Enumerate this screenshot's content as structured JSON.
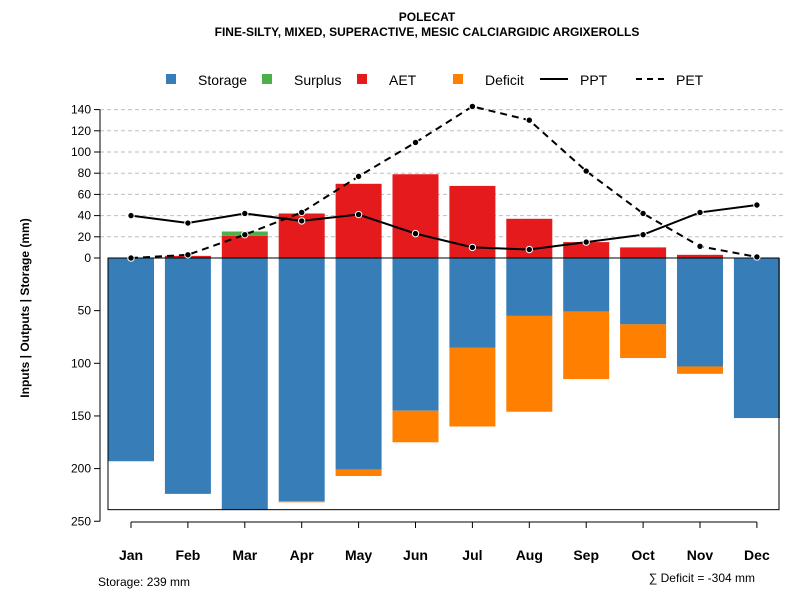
{
  "chart_data": {
    "type": "bar",
    "title": "POLECAT",
    "subtitle": "FINE-SILTY, MIXED, SUPERACTIVE, MESIC CALCIARGIDIC ARGIXEROLLS",
    "ylabel": "Inputs | Outputs | Storage     (mm)",
    "categories": [
      "Jan",
      "Feb",
      "Mar",
      "Apr",
      "May",
      "Jun",
      "Jul",
      "Aug",
      "Sep",
      "Oct",
      "Nov",
      "Dec"
    ],
    "upper_ticks": [
      "0",
      "20",
      "40",
      "60",
      "80",
      "100",
      "120",
      "140"
    ],
    "lower_ticks": [
      "50",
      "100",
      "150",
      "200",
      "250"
    ],
    "upper_range": [
      0,
      140
    ],
    "lower_range": [
      0,
      250
    ],
    "legend": [
      {
        "label": "Storage",
        "type": "square",
        "color": "#377EB8"
      },
      {
        "label": "Surplus",
        "type": "square",
        "color": "#4DAF4A"
      },
      {
        "label": "AET",
        "type": "square",
        "color": "#E41A1C"
      },
      {
        "label": "Deficit",
        "type": "square",
        "color": "#FF7F00"
      },
      {
        "label": "PPT",
        "type": "line",
        "dash": "solid"
      },
      {
        "label": "PET",
        "type": "line",
        "dash": "dashed"
      }
    ],
    "series": [
      {
        "name": "AET",
        "color": "#E41A1C",
        "values": [
          0,
          2,
          21,
          42,
          70,
          79,
          68,
          37,
          15,
          10,
          3,
          0
        ]
      },
      {
        "name": "Surplus",
        "color": "#4DAF4A",
        "values": [
          0,
          0,
          4,
          0,
          0,
          0,
          0,
          0,
          0,
          0,
          0,
          0
        ]
      },
      {
        "name": "Storage",
        "color": "#377EB8",
        "values": [
          193,
          224,
          239,
          231,
          201,
          145,
          85,
          55,
          51,
          63,
          103,
          152
        ]
      },
      {
        "name": "Deficit",
        "color": "#FF7F00",
        "values": [
          0,
          0,
          0,
          1,
          6,
          30,
          75,
          91,
          64,
          32,
          7,
          0
        ]
      },
      {
        "name": "PPT",
        "type": "line",
        "values": [
          40,
          33,
          42,
          35,
          41,
          23,
          10,
          8,
          15,
          22,
          43,
          50
        ]
      },
      {
        "name": "PET",
        "type": "line",
        "values": [
          0,
          3,
          22,
          43,
          77,
          109,
          143,
          130,
          82,
          42,
          11,
          1
        ]
      }
    ],
    "storage_capacity": 239,
    "footnote_left": "Storage: 239 mm",
    "footnote_right": "∑ Deficit = -304 mm",
    "grid": true
  },
  "colors": {
    "storage": "#377EB8",
    "surplus": "#4DAF4A",
    "aet": "#E41A1C",
    "deficit": "#FF7F00",
    "grid": "#bebebe"
  }
}
